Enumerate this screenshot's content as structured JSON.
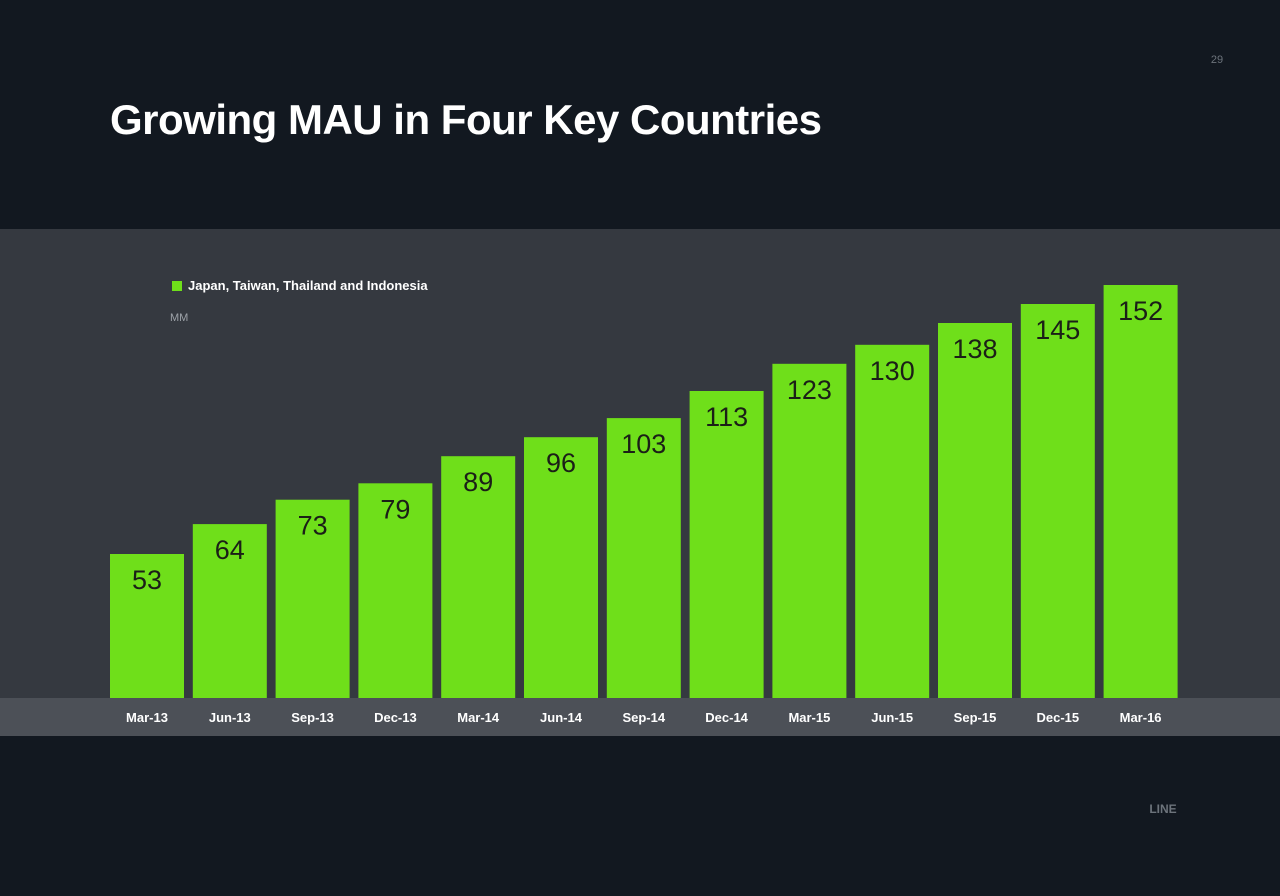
{
  "page_number": "29",
  "brand": "LINE",
  "chart_data": {
    "type": "bar",
    "title": "Growing MAU in Four Key Countries",
    "ylabel": "MM",
    "legend": {
      "position": "top-left",
      "entries": [
        "Japan, Taiwan, Thailand and Indonesia"
      ]
    },
    "categories": [
      "Mar-13",
      "Jun-13",
      "Sep-13",
      "Dec-13",
      "Mar-14",
      "Jun-14",
      "Sep-14",
      "Dec-14",
      "Mar-15",
      "Jun-15",
      "Sep-15",
      "Dec-15",
      "Mar-16"
    ],
    "series": [
      {
        "name": "Japan, Taiwan, Thailand and Indonesia",
        "values": [
          53,
          64,
          73,
          79,
          89,
          96,
          103,
          113,
          123,
          130,
          138,
          145,
          152
        ],
        "color": "#6fdf1a"
      }
    ],
    "ylim": [
      0,
      152
    ],
    "grid": false,
    "data_labels": true
  },
  "colors": {
    "background": "#121820",
    "panel": "#353940",
    "axis_band": "#4c5057",
    "bar": "#6fdf1a",
    "bar_label": "#1b1f17"
  }
}
